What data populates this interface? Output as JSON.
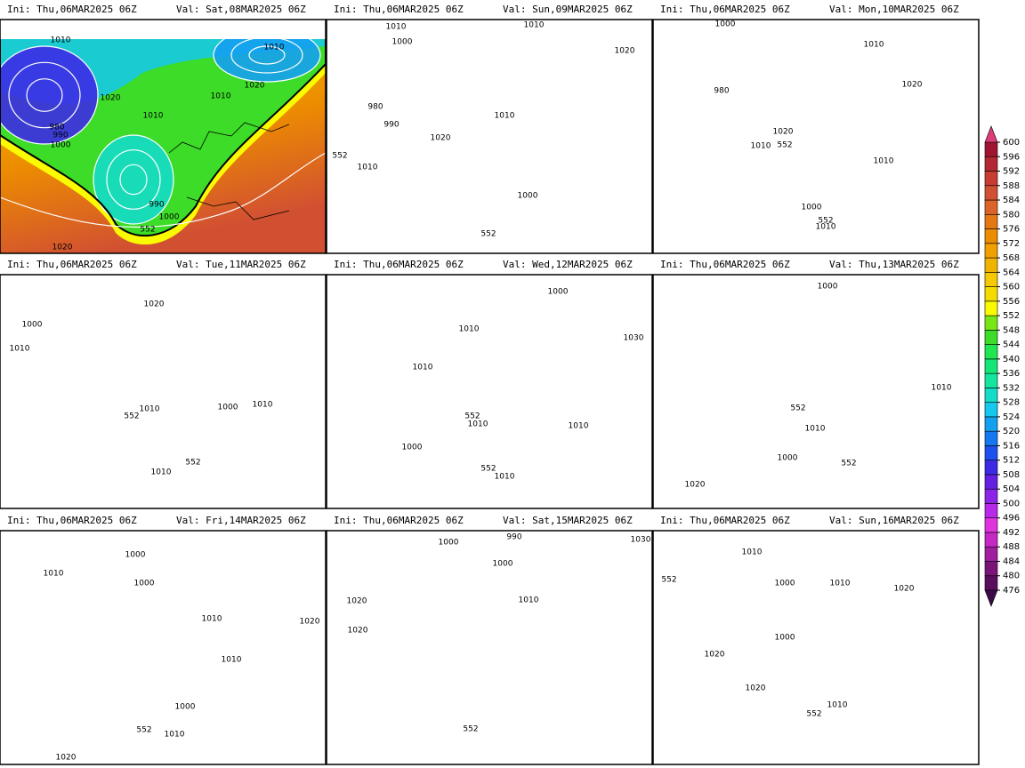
{
  "panels": [
    {
      "ini": "Ini: Thu,06MAR2025 06Z",
      "val": "Val: Sat,08MAR2025 06Z",
      "contour_labels": [
        1010,
        1010,
        1020,
        1010,
        1020,
        1010,
        980,
        990,
        1000,
        990,
        1000,
        552,
        1020
      ]
    },
    {
      "ini": "Ini: Thu,06MAR2025 06Z",
      "val": "Val: Sun,09MAR2025 06Z",
      "contour_labels": [
        1010,
        1000,
        1010,
        1020,
        980,
        990,
        1010,
        1020,
        552,
        1010,
        1000,
        552
      ]
    },
    {
      "ini": "Ini: Thu,06MAR2025 06Z",
      "val": "Val: Mon,10MAR2025 06Z",
      "contour_labels": [
        1000,
        1010,
        980,
        1020,
        1020,
        1010,
        552,
        1010,
        1000,
        552,
        1010
      ]
    },
    {
      "ini": "Ini: Thu,06MAR2025 06Z",
      "val": "Val: Tue,11MAR2025 06Z",
      "contour_labels": [
        1020,
        1000,
        1010,
        1010,
        552,
        1000,
        1010,
        552,
        1010
      ]
    },
    {
      "ini": "Ini: Thu,06MAR2025 06Z",
      "val": "Val: Wed,12MAR2025 06Z",
      "contour_labels": [
        1000,
        1010,
        1010,
        1030,
        552,
        1010,
        1010,
        1000,
        552,
        1010
      ]
    },
    {
      "ini": "Ini: Thu,06MAR2025 06Z",
      "val": "Val: Thu,13MAR2025 06Z",
      "contour_labels": [
        1000,
        1010,
        552,
        1010,
        1000,
        552,
        1020
      ]
    },
    {
      "ini": "Ini: Thu,06MAR2025 06Z",
      "val": "Val: Fri,14MAR2025 06Z",
      "contour_labels": [
        1000,
        1010,
        1000,
        1010,
        1020,
        1010,
        1000,
        552,
        1010,
        1020
      ]
    },
    {
      "ini": "Ini: Thu,06MAR2025 06Z",
      "val": "Val: Sat,15MAR2025 06Z",
      "contour_labels": [
        1000,
        990,
        1030,
        1000,
        1020,
        1020,
        1010,
        552
      ]
    },
    {
      "ini": "Ini: Thu,06MAR2025 06Z",
      "val": "Val: Sun,16MAR2025 06Z",
      "contour_labels": [
        1010,
        552,
        1000,
        1010,
        1020,
        1000,
        1020,
        1020,
        552,
        1010
      ]
    }
  ],
  "colorbar": {
    "levels": [
      476,
      480,
      484,
      488,
      492,
      496,
      500,
      504,
      508,
      512,
      516,
      520,
      524,
      528,
      532,
      536,
      540,
      544,
      548,
      552,
      556,
      560,
      564,
      568,
      572,
      576,
      580,
      584,
      588,
      592,
      596,
      600
    ],
    "colors": [
      "#5a0f5e",
      "#7a1479",
      "#a21ea0",
      "#c528c4",
      "#e132e0",
      "#b828e8",
      "#8c23e6",
      "#6420e0",
      "#3c2ae6",
      "#1e50f0",
      "#1478f0",
      "#14a0f0",
      "#14c8f0",
      "#14dcc8",
      "#14e6a0",
      "#14e678",
      "#20e650",
      "#3cdc28",
      "#78e614",
      "#fafa00",
      "#f5dc00",
      "#f5c800",
      "#f0b400",
      "#f0a000",
      "#ec8c00",
      "#e67814",
      "#dc6428",
      "#d25032",
      "#c83c32",
      "#b42832",
      "#a01432"
    ],
    "under_color": "#3c0a46",
    "over_color": "#dc3c78"
  }
}
